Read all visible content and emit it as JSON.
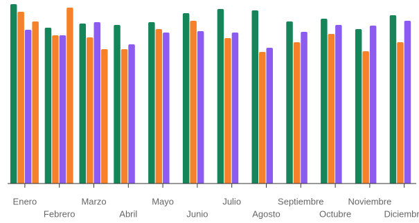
{
  "chart_data": {
    "type": "bar",
    "categories": [
      "Enero",
      "Febrero",
      "Marzo",
      "Abril",
      "Mayo",
      "Junio",
      "Julio",
      "Agosto",
      "Septiembre",
      "Octubre",
      "Noviembre",
      "Diciembre"
    ],
    "series": [
      {
        "color": "#16855a",
        "values": [
          259,
          225,
          231,
          229,
          233,
          246,
          252,
          250,
          234,
          238,
          223,
          243
        ]
      },
      {
        "color": "#f5822a",
        "values": [
          248,
          214,
          211,
          194,
          223,
          235,
          210,
          190,
          204,
          216,
          191,
          204
        ]
      },
      {
        "color": "#8c5cf0",
        "values": [
          222,
          214,
          233,
          201,
          218,
          220,
          218,
          196,
          219,
          229,
          228,
          235
        ]
      },
      {
        "color": "#f5822a",
        "values": [
          234,
          254,
          194,
          null,
          null,
          null,
          null,
          null,
          null,
          null,
          null,
          null
        ]
      }
    ],
    "ylim": [
      0,
      260
    ]
  }
}
